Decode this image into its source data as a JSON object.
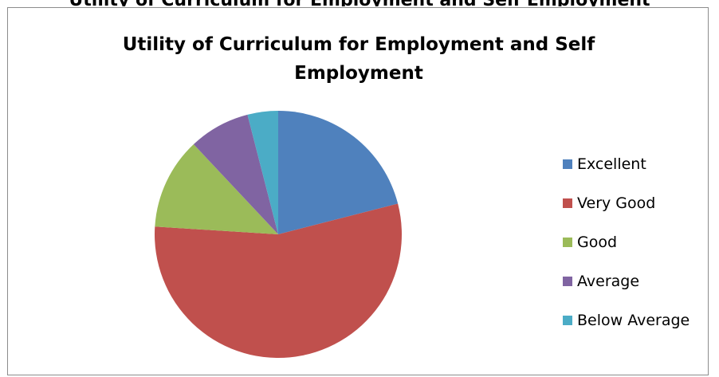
{
  "chart_data": {
    "type": "pie",
    "title": "Utility of Curriculum for Employment and Self Employment",
    "title_lines": [
      "Utility of Curriculum for Employment and Self",
      "Employment"
    ],
    "clipped_heading": "Utility of Curriculum for Employment and Self Employment",
    "categories": [
      "Excellent",
      "Very Good",
      "Good",
      "Average",
      "Below Average"
    ],
    "values": [
      21,
      55,
      12,
      8,
      4
    ],
    "colors": [
      "#4f81bd",
      "#c0504d",
      "#9bbb59",
      "#8064a2",
      "#4bacc6"
    ],
    "legend_position": "right"
  }
}
